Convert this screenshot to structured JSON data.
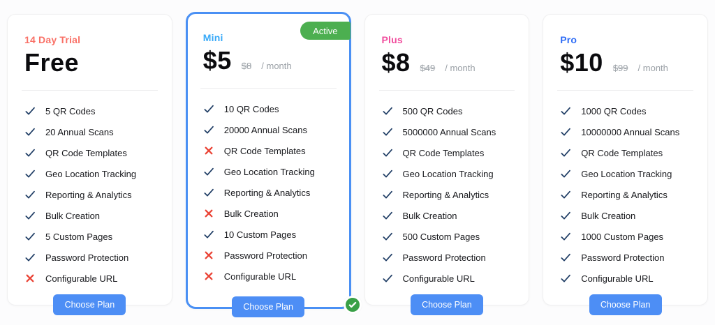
{
  "colors": {
    "accent_blue": "#4d8ef5",
    "active_border": "#4a90f4",
    "badge_green": "#4caf50",
    "check_navy": "#1e3c64",
    "cross_red": "#ea4335",
    "muted_gray": "#9aa0a6"
  },
  "plans": [
    {
      "id": "free",
      "label": "14 Day Trial",
      "label_color": "#f97066",
      "price": "Free",
      "old_price": "",
      "period": "",
      "active": false,
      "badge": "",
      "button_label": "Choose Plan",
      "features": [
        {
          "text": "5 QR Codes",
          "included": true
        },
        {
          "text": "20 Annual Scans",
          "included": true
        },
        {
          "text": "QR Code Templates",
          "included": true
        },
        {
          "text": "Geo Location Tracking",
          "included": true
        },
        {
          "text": "Reporting & Analytics",
          "included": true
        },
        {
          "text": "Bulk Creation",
          "included": true
        },
        {
          "text": "5 Custom Pages",
          "included": true
        },
        {
          "text": "Password Protection",
          "included": true
        },
        {
          "text": "Configurable URL",
          "included": false
        }
      ]
    },
    {
      "id": "mini",
      "label": "Mini",
      "label_color": "#38a9f8",
      "price": "$5",
      "old_price": "$8",
      "period": "/ month",
      "active": true,
      "badge": "Active",
      "button_label": "Choose Plan",
      "features": [
        {
          "text": "10 QR Codes",
          "included": true
        },
        {
          "text": "20000 Annual Scans",
          "included": true
        },
        {
          "text": "QR Code Templates",
          "included": false
        },
        {
          "text": "Geo Location Tracking",
          "included": true
        },
        {
          "text": "Reporting & Analytics",
          "included": true
        },
        {
          "text": "Bulk Creation",
          "included": false
        },
        {
          "text": "10 Custom Pages",
          "included": true
        },
        {
          "text": "Password Protection",
          "included": false
        },
        {
          "text": "Configurable URL",
          "included": false
        }
      ]
    },
    {
      "id": "plus",
      "label": "Plus",
      "label_color": "#f14e9e",
      "price": "$8",
      "old_price": "$49",
      "period": "/ month",
      "active": false,
      "badge": "",
      "button_label": "Choose Plan",
      "features": [
        {
          "text": "500 QR Codes",
          "included": true
        },
        {
          "text": "5000000 Annual Scans",
          "included": true
        },
        {
          "text": "QR Code Templates",
          "included": true
        },
        {
          "text": "Geo Location Tracking",
          "included": true
        },
        {
          "text": "Reporting & Analytics",
          "included": true
        },
        {
          "text": "Bulk Creation",
          "included": true
        },
        {
          "text": "500 Custom Pages",
          "included": true
        },
        {
          "text": "Password Protection",
          "included": true
        },
        {
          "text": "Configurable URL",
          "included": true
        }
      ]
    },
    {
      "id": "pro",
      "label": "Pro",
      "label_color": "#2f6df6",
      "price": "$10",
      "old_price": "$99",
      "period": "/ month",
      "active": false,
      "badge": "",
      "button_label": "Choose Plan",
      "features": [
        {
          "text": "1000 QR Codes",
          "included": true
        },
        {
          "text": "10000000 Annual Scans",
          "included": true
        },
        {
          "text": "QR Code Templates",
          "included": true
        },
        {
          "text": "Geo Location Tracking",
          "included": true
        },
        {
          "text": "Reporting & Analytics",
          "included": true
        },
        {
          "text": "Bulk Creation",
          "included": true
        },
        {
          "text": "1000 Custom Pages",
          "included": true
        },
        {
          "text": "Password Protection",
          "included": true
        },
        {
          "text": "Configurable URL",
          "included": true
        }
      ]
    }
  ]
}
